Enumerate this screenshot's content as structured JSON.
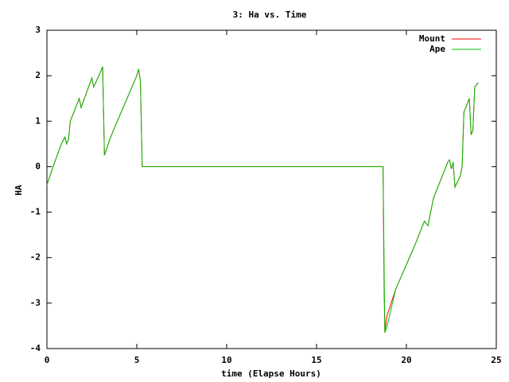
{
  "chart_data": {
    "type": "line",
    "title": "3: Ha vs. Time",
    "x_label": "time (Elapse Hours)",
    "y_label": "HA",
    "x": [
      0,
      0.3,
      0.8,
      1.0,
      1.1,
      1.2,
      1.3,
      1.8,
      1.9,
      2.5,
      2.6,
      3.0,
      3.1,
      3.2,
      3.5,
      3.7,
      5.0,
      5.1,
      5.2,
      5.3,
      18.7,
      18.72,
      18.76,
      18.8,
      18.9,
      19.4,
      20.5,
      21.0,
      21.2,
      21.5,
      22.3,
      22.4,
      22.5,
      22.6,
      22.7,
      23.0,
      23.1,
      23.2,
      23.5,
      23.6,
      23.7,
      23.8,
      24.0
    ],
    "series": [
      {
        "name": "Mount",
        "color": "#ff0000",
        "values": [
          -0.4,
          -0.05,
          0.5,
          0.65,
          0.5,
          0.6,
          1.0,
          1.5,
          1.3,
          1.95,
          1.75,
          2.1,
          2.2,
          0.25,
          0.6,
          0.8,
          2.0,
          2.15,
          1.9,
          0.0,
          0.0,
          -0.9,
          -2.7,
          -3.65,
          -3.3,
          -2.7,
          -1.7,
          -1.2,
          -1.3,
          -0.7,
          0.1,
          0.15,
          -0.05,
          0.1,
          -0.45,
          -0.2,
          0.0,
          1.2,
          1.5,
          0.7,
          0.8,
          1.75,
          1.85
        ]
      },
      {
        "name": "Ape",
        "color": "#00c000",
        "values": [
          -0.4,
          -0.05,
          0.5,
          0.65,
          0.5,
          0.6,
          1.0,
          1.5,
          1.3,
          1.95,
          1.75,
          2.1,
          2.2,
          0.25,
          0.6,
          0.8,
          2.0,
          2.15,
          1.9,
          0.0,
          0.0,
          -0.7,
          -2.2,
          -3.65,
          -3.55,
          -2.7,
          -1.7,
          -1.2,
          -1.3,
          -0.7,
          0.1,
          0.15,
          -0.05,
          0.1,
          -0.45,
          -0.2,
          0.0,
          1.2,
          1.5,
          0.7,
          0.8,
          1.75,
          1.85
        ]
      }
    ],
    "xlim": [
      0,
      25
    ],
    "xticks": [
      0,
      5,
      10,
      15,
      20,
      25
    ],
    "ylim": [
      -4,
      3
    ],
    "yticks": [
      -4,
      -3,
      -2,
      -1,
      0,
      1,
      2,
      3
    ],
    "legend": "top-right",
    "grid": false
  }
}
